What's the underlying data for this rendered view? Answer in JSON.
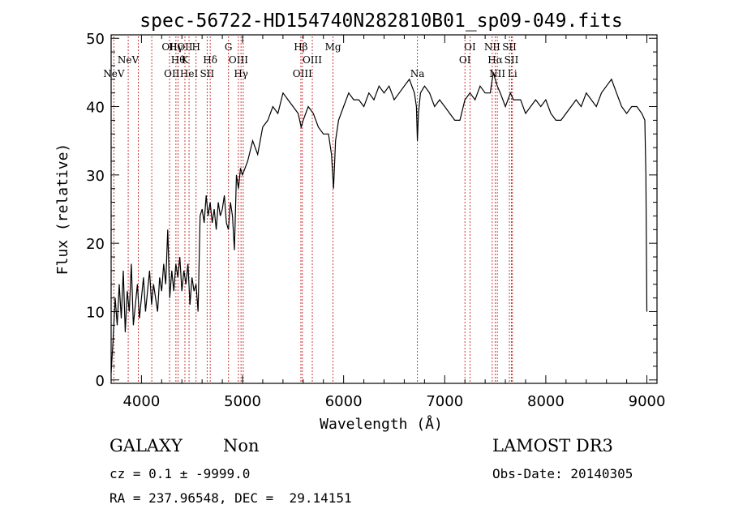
{
  "chart_data": {
    "type": "line",
    "title": "spec-56722-HD154740N282810B01_sp09-049.fits",
    "xlabel": "Wavelength (Å)",
    "ylabel": "Flux (relative)",
    "xlim": [
      3700,
      9100
    ],
    "ylim": [
      -0.5,
      50.5
    ],
    "xticks": [
      4000,
      5000,
      6000,
      7000,
      8000,
      9000
    ],
    "yticks": [
      0,
      10,
      20,
      30,
      40,
      50
    ],
    "grid": false,
    "series": [
      {
        "x": [
          3700,
          3720,
          3740,
          3760,
          3780,
          3800,
          3820,
          3840,
          3860,
          3880,
          3900,
          3920,
          3940,
          3960,
          3980,
          4000,
          4020,
          4040,
          4060,
          4080,
          4100,
          4120,
          4140,
          4160,
          4180,
          4200,
          4220,
          4240,
          4260,
          4280,
          4300,
          4320,
          4340,
          4360,
          4380,
          4400,
          4420,
          4440,
          4460,
          4480,
          4500,
          4520,
          4540,
          4560,
          4580,
          4600,
          4620,
          4640,
          4660,
          4680,
          4700,
          4720,
          4740,
          4760,
          4780,
          4800,
          4820,
          4840,
          4860,
          4880,
          4900,
          4920,
          4940,
          4960,
          4980,
          5000,
          5050,
          5100,
          5150,
          5200,
          5250,
          5300,
          5350,
          5400,
          5450,
          5500,
          5550,
          5580,
          5600,
          5650,
          5700,
          5750,
          5800,
          5850,
          5880,
          5900,
          5920,
          5950,
          6000,
          6050,
          6100,
          6150,
          6200,
          6250,
          6300,
          6350,
          6400,
          6450,
          6500,
          6550,
          6600,
          6650,
          6700,
          6720,
          6730,
          6740,
          6760,
          6800,
          6850,
          6900,
          6950,
          7000,
          7050,
          7100,
          7150,
          7200,
          7250,
          7300,
          7350,
          7400,
          7450,
          7480,
          7500,
          7520,
          7550,
          7600,
          7650,
          7680,
          7700,
          7750,
          7800,
          7850,
          7900,
          7950,
          8000,
          8050,
          8100,
          8150,
          8200,
          8250,
          8300,
          8350,
          8400,
          8450,
          8500,
          8550,
          8600,
          8650,
          8700,
          8750,
          8800,
          8850,
          8900,
          8950,
          8980,
          8990,
          9000
        ],
        "y": [
          1,
          6,
          12,
          8,
          14,
          9,
          16,
          7,
          13,
          10,
          17,
          8,
          11,
          14,
          9,
          12,
          15,
          10,
          13,
          16,
          11,
          14,
          12,
          10,
          15,
          13,
          17,
          14,
          22,
          12,
          16,
          13,
          17,
          15,
          18,
          13,
          16,
          14,
          17,
          11,
          15,
          13,
          14,
          10,
          24,
          25,
          23,
          27,
          24,
          26,
          23,
          25,
          22,
          26,
          24,
          25,
          27,
          23,
          22,
          26,
          24,
          19,
          30,
          28,
          31,
          30,
          32,
          35,
          33,
          37,
          38,
          40,
          39,
          42,
          41,
          40,
          39,
          37,
          38,
          40,
          39,
          37,
          36,
          36,
          33,
          28,
          35,
          38,
          40,
          42,
          41,
          41,
          40,
          42,
          41,
          43,
          42,
          43,
          41,
          42,
          43,
          44,
          42,
          40,
          35,
          39,
          42,
          43,
          42,
          40,
          41,
          40,
          39,
          38,
          38,
          41,
          42,
          41,
          43,
          42,
          42,
          45,
          44,
          43,
          42,
          40,
          42,
          41,
          41,
          41,
          39,
          40,
          41,
          40,
          41,
          39,
          38,
          38,
          39,
          40,
          41,
          40,
          42,
          41,
          40,
          42,
          43,
          44,
          42,
          40,
          39,
          40,
          40,
          39,
          38,
          30,
          10
        ]
      }
    ],
    "lines": [
      {
        "x": 3727,
        "label": "NeV",
        "pos": 2
      },
      {
        "x": 3869,
        "label": "NeV",
        "pos": 1
      },
      {
        "x": 3969,
        "label": "",
        "pos": 1
      },
      {
        "x": 4102,
        "label": "",
        "pos": 1
      },
      {
        "x": 4278,
        "label": "OII",
        "pos": 0
      },
      {
        "x": 4341,
        "label": "Hγ",
        "pos": 0
      },
      {
        "x": 4363,
        "label": "Hθ",
        "pos": 1
      },
      {
        "x": 4471,
        "label": "HeI",
        "pos": 2
      },
      {
        "x": 4430,
        "label": "K",
        "pos": 1
      },
      {
        "x": 4540,
        "label": "H",
        "pos": 0
      },
      {
        "x": 4680,
        "label": "Hδ",
        "pos": 1
      },
      {
        "x": 4650,
        "label": "SII",
        "pos": 2
      },
      {
        "x": 4861,
        "label": "G",
        "pos": 0
      },
      {
        "x": 4959,
        "label": "OIII",
        "pos": 1
      },
      {
        "x": 4985,
        "label": "Hγ",
        "pos": 2
      },
      {
        "x": 5007,
        "label": "",
        "pos": 1
      },
      {
        "x": 5577,
        "label": "Hβ",
        "pos": 0
      },
      {
        "x": 5592,
        "label": "OIII",
        "pos": 2
      },
      {
        "x": 5690,
        "label": "OIII",
        "pos": 1
      },
      {
        "x": 5895,
        "label": "Mg",
        "pos": 0
      },
      {
        "x": 6730,
        "label": "Na",
        "pos": 2
      },
      {
        "x": 7200,
        "label": "OI",
        "pos": 1
      },
      {
        "x": 7250,
        "label": "OI",
        "pos": 0
      },
      {
        "x": 7470,
        "label": "NII",
        "pos": 0
      },
      {
        "x": 7500,
        "label": "Hα",
        "pos": 1
      },
      {
        "x": 7520,
        "label": "NII",
        "pos": 2
      },
      {
        "x": 7640,
        "label": "SII",
        "pos": 0
      },
      {
        "x": 7660,
        "label": "SII",
        "pos": 1
      },
      {
        "x": 7670,
        "label": "Li",
        "pos": 2
      }
    ],
    "extra_labels": {
      "oii2": "OII",
      "h2": "H"
    }
  },
  "info": {
    "class": "GALAXY",
    "subclass": "Non",
    "survey": "LAMOST DR3",
    "cz": "cz = 0.1 ± -9999.0",
    "obsdate": "Obs-Date: 20140305",
    "radec": "RA = 237.96548, DEC =  29.14151"
  },
  "colors": {
    "spectrum": "#000000",
    "line_marker": "#cc2222"
  }
}
